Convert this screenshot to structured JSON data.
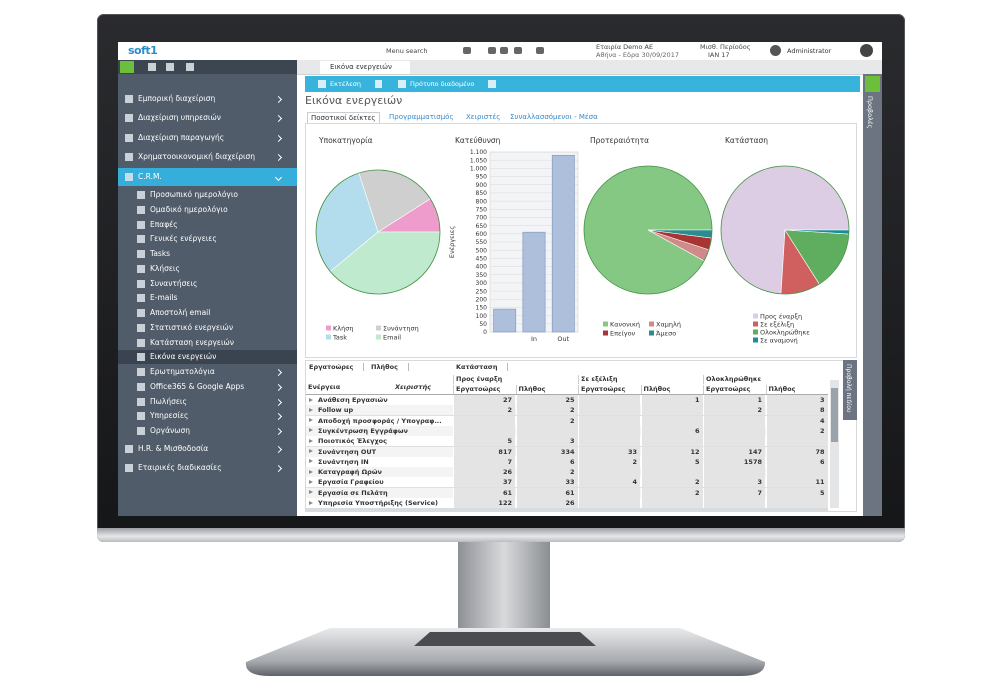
{
  "header": {
    "logo": "soft1",
    "menu_search": "Menu search",
    "company": "Εταιρία Demo AE",
    "branch": "Αθήνα - Εδρα 30/09/2017",
    "period_label": "Μισθ. Περίοδος",
    "period": "ΙΑΝ 17",
    "user": "Administrator"
  },
  "menu_top": [
    "Εμπορική διαχείριση",
    "Διαχείριση υπηρεσιών",
    "Διαχείριση παραγωγής",
    "Χρηματοοικονομική διαχείριση"
  ],
  "menu_active": "C.R.M.",
  "menu_sub": [
    "Προσωπικό ημερολόγιο",
    "Ομαδικό ημερολόγιο",
    "Επαφές",
    "Γενικές ενέργειες",
    "Tasks",
    "Κλήσεις",
    "Συναντήσεις",
    "E-mails",
    "Αποστολή email",
    "Στατιστικό ενεργειών",
    "Κατάσταση ενεργειών",
    "Εικόνα ενεργειών",
    "Ερωτηματολόγια",
    "Office365 & Google Apps",
    "Πωλήσεις",
    "Υπηρεσίες",
    "Οργάνωση"
  ],
  "menu_bottom": [
    "H.R. & Μισθοδοσία",
    "Εταιρικές διαδικασίες"
  ],
  "tab": "Εικόνα ενεργειών",
  "toolbar": [
    "Εκτέλεση",
    "Πρότυπο διαδομένο"
  ],
  "page_title": "Εικόνα ενεργειών",
  "subtabs": [
    "Ποσοτικοί δείκτες",
    "Προγραμματισμός",
    "Χειριστές",
    "Συναλλασσόμενοι - Μέσα"
  ],
  "side_tabs": [
    "Προβολές",
    "Προβολή πεδίου"
  ],
  "chart_data": [
    {
      "type": "pie",
      "title": "Υποκατηγορία",
      "categories": [
        "Κλήση",
        "Συνάντηση",
        "Task",
        "Email"
      ],
      "values": [
        9,
        21,
        31,
        39
      ],
      "colors": [
        "#ee9ccb",
        "#cfcfcf",
        "#b3dcec",
        "#bfeacd"
      ]
    },
    {
      "type": "bar",
      "title": "Κατεύθυνση",
      "y_label": "Ενέργειες",
      "categories": [
        null,
        "In",
        "Out"
      ],
      "values": [
        140,
        610,
        1080
      ],
      "color": "#aebfdc",
      "ylim": [
        0,
        1100
      ],
      "yticks": [
        0,
        50,
        100,
        150,
        200,
        250,
        300,
        350,
        400,
        450,
        500,
        550,
        600,
        650,
        700,
        750,
        800,
        850,
        900,
        950,
        {
          "value": 1000,
          "label": "1.000"
        },
        {
          "value": 1050,
          "label": "1.050"
        },
        {
          "value": 1100,
          "label": "1.100"
        }
      ],
      "grid": true
    },
    {
      "type": "pie",
      "title": "Προτεραιότητα",
      "categories": [
        "Κανονική",
        "Χαμηλή",
        "Επείγον",
        "Άμεσο"
      ],
      "values": [
        92,
        3,
        3,
        2
      ],
      "colors": [
        "#84c884",
        "#d08a8a",
        "#a83434",
        "#2a8c8c"
      ]
    },
    {
      "type": "pie",
      "title": "Κατάσταση",
      "categories": [
        "Προς έναρξη",
        "Σε εξέλιξη",
        "Ολοκληρώθηκε",
        "Σε αναμονή"
      ],
      "values": [
        74,
        10,
        15,
        1
      ],
      "colors": [
        "#dccce4",
        "#d06060",
        "#5fae5f",
        "#1b8c9c"
      ]
    }
  ],
  "pivot": {
    "filters": [
      "Εργατοώρες",
      "Πλήθος",
      "Κατάσταση"
    ],
    "row_fields": [
      "Ενέργεια",
      "Χειριστής"
    ],
    "groups": [
      "Προς έναρξη",
      "Σε εξέλιξη",
      "Ολοκληρώθηκε"
    ],
    "measures": [
      "Εργατοώρες",
      "Πλήθος",
      "Εργατοώρες",
      "Πλήθος",
      "Εργατοώρες",
      "Πλήθος"
    ],
    "rows": [
      {
        "label": "Ανάθεση Εργασιών",
        "cells": [
          27,
          25,
          null,
          1,
          1,
          3
        ]
      },
      {
        "label": "Follow up",
        "cells": [
          2,
          2,
          null,
          null,
          2,
          8
        ]
      },
      {
        "label": "Αποδοχή προσφοράς / Υπογραφ...",
        "cells": [
          null,
          2,
          null,
          null,
          null,
          4
        ]
      },
      {
        "label": "Συγκέντρωση Εγγράφων",
        "cells": [
          null,
          null,
          null,
          6,
          null,
          2
        ]
      },
      {
        "label": "Ποιοτικός Έλεγχος",
        "cells": [
          5,
          3,
          null,
          null,
          null,
          null
        ]
      },
      {
        "label": "Συνάντηση OUT",
        "cells": [
          817,
          334,
          33,
          12,
          147,
          78
        ]
      },
      {
        "label": "Συνάντηση IN",
        "cells": [
          7,
          6,
          2,
          5,
          1578,
          6
        ]
      },
      {
        "label": "Καταγραφή Ωρών",
        "cells": [
          26,
          2,
          null,
          null,
          null,
          null
        ]
      },
      {
        "label": "Εργασία Γραφείου",
        "cells": [
          37,
          33,
          4,
          2,
          3,
          11
        ]
      },
      {
        "label": "Εργασία σε Πελάτη",
        "cells": [
          61,
          61,
          null,
          2,
          7,
          5
        ]
      },
      {
        "label": "Υπηρεσία Υποστήριξης (Service)",
        "cells": [
          122,
          26,
          null,
          null,
          null,
          null
        ]
      }
    ]
  }
}
